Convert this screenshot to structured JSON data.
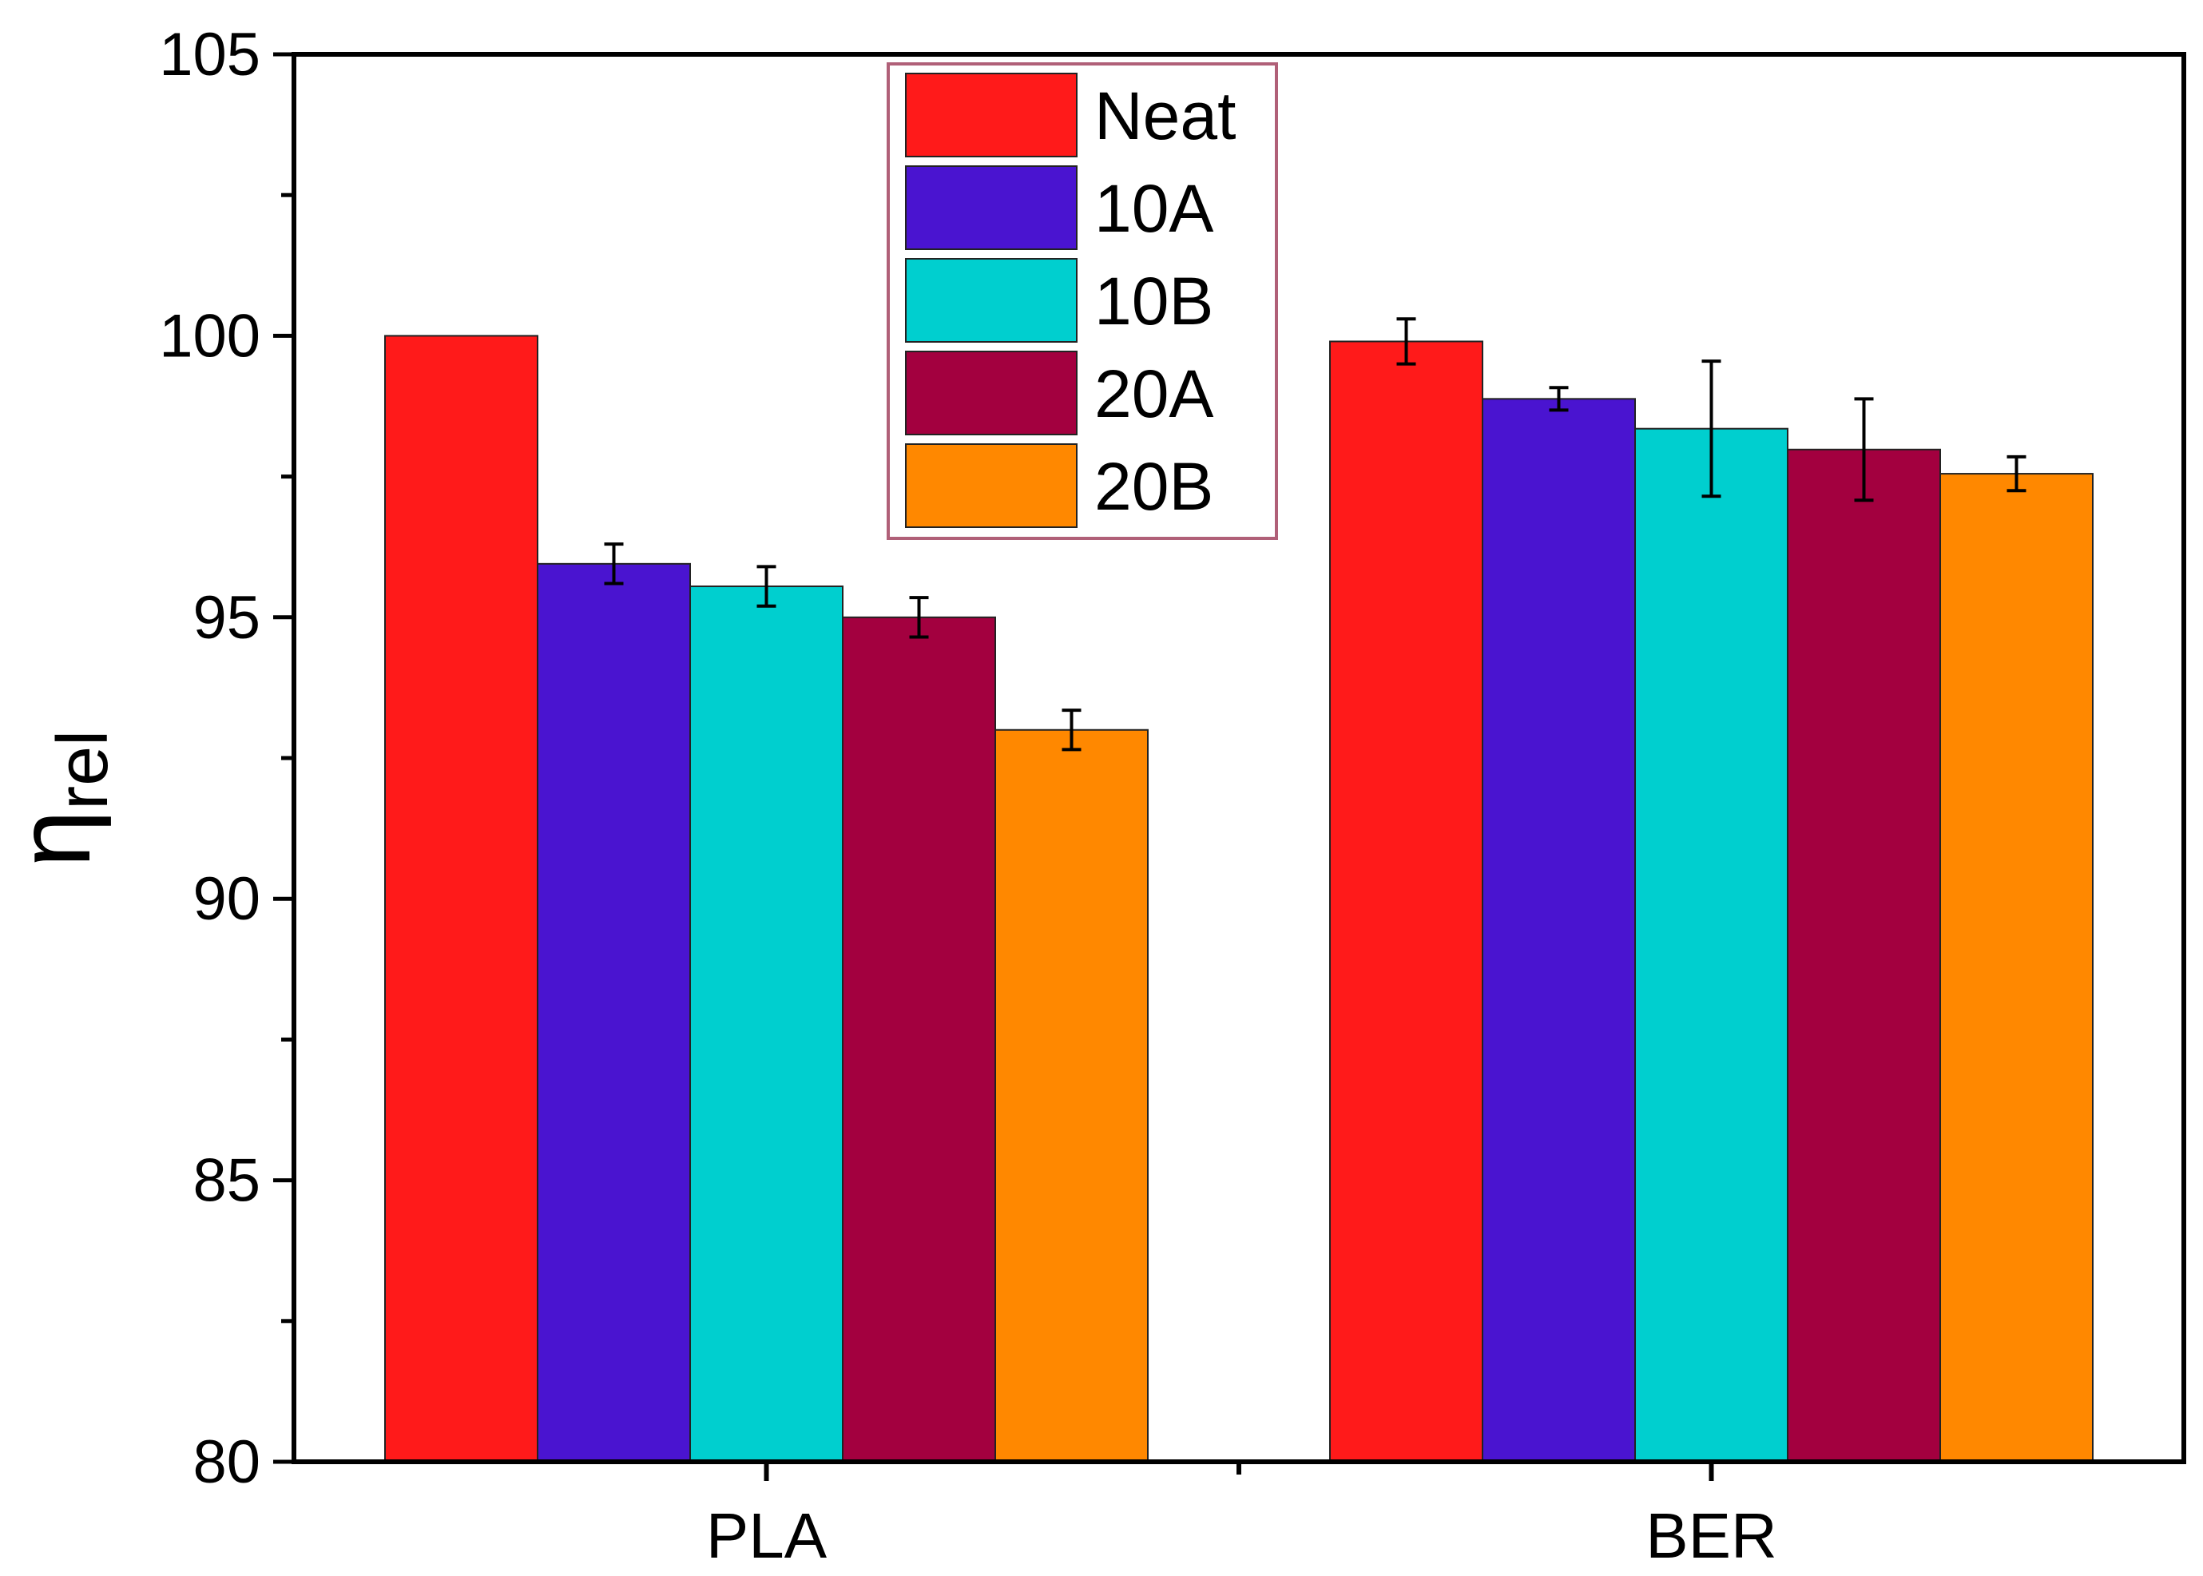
{
  "chart_data": {
    "type": "bar",
    "title": "",
    "xlabel": "",
    "ylabel": "η",
    "ylabel_subscript": "rel",
    "ylim": [
      80,
      105
    ],
    "yticks": [
      80,
      85,
      90,
      95,
      100,
      105
    ],
    "categories": [
      "PLA",
      "BER"
    ],
    "legend_position": "top-center",
    "series": [
      {
        "name": "Neat",
        "color": "#ff1a1a",
        "values": [
          100.0,
          99.9
        ],
        "errors": [
          0,
          0.4
        ]
      },
      {
        "name": "10A",
        "color": "#4a14d0",
        "values": [
          95.95,
          98.88
        ],
        "errors": [
          0.35,
          0.2
        ]
      },
      {
        "name": "10B",
        "color": "#00cfcf",
        "values": [
          95.55,
          98.35
        ],
        "errors": [
          0.35,
          1.2
        ]
      },
      {
        "name": "20A",
        "color": "#a3003f",
        "values": [
          95.0,
          97.98
        ],
        "errors": [
          0.35,
          0.9
        ]
      },
      {
        "name": "20B",
        "color": "#ff8800",
        "values": [
          93.0,
          97.55
        ],
        "errors": [
          0.35,
          0.3
        ]
      }
    ]
  }
}
